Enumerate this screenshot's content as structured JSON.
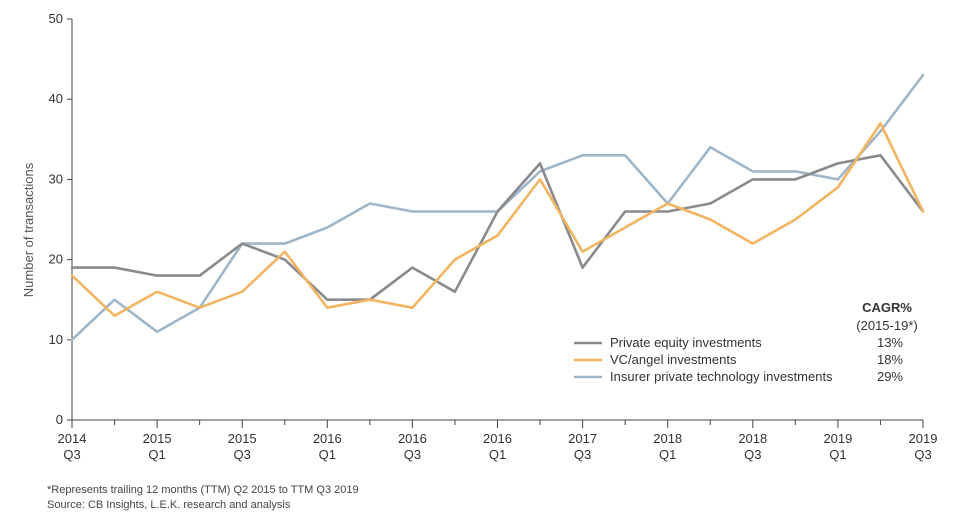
{
  "chart_data": {
    "type": "line",
    "ylabel": "Number of transactions",
    "ylim": [
      0,
      50
    ],
    "yticks": [
      0,
      10,
      20,
      30,
      40,
      50
    ],
    "grid": false,
    "x": [
      "2014 Q3",
      "2014 Q4",
      "2015 Q1",
      "2015 Q2",
      "2015 Q3",
      "2015 Q4",
      "2016 Q1",
      "2016 Q2",
      "2016 Q3",
      "2016 Q4",
      "2016 Q1",
      "2016 Q2",
      "2017 Q3",
      "2017 Q4",
      "2018 Q1",
      "2018 Q2",
      "2018 Q3",
      "2018 Q4",
      "2019 Q1",
      "2019 Q2",
      "2019 Q3"
    ],
    "xtick_labels": [
      {
        "index": 0,
        "year": "2014",
        "quarter": "Q3"
      },
      {
        "index": 2,
        "year": "2015",
        "quarter": "Q1"
      },
      {
        "index": 4,
        "year": "2015",
        "quarter": "Q3"
      },
      {
        "index": 6,
        "year": "2016",
        "quarter": "Q1"
      },
      {
        "index": 8,
        "year": "2016",
        "quarter": "Q3"
      },
      {
        "index": 10,
        "year": "2016",
        "quarter": "Q1"
      },
      {
        "index": 12,
        "year": "2017",
        "quarter": "Q3"
      },
      {
        "index": 14,
        "year": "2018",
        "quarter": "Q1"
      },
      {
        "index": 16,
        "year": "2018",
        "quarter": "Q3"
      },
      {
        "index": 18,
        "year": "2019",
        "quarter": "Q1"
      },
      {
        "index": 20,
        "year": "2019",
        "quarter": "Q3"
      }
    ],
    "series": [
      {
        "name": "Private equity investments",
        "color": "#8a8a8c",
        "cagr": "13%",
        "values": [
          19,
          19,
          18,
          18,
          22,
          20,
          15,
          15,
          19,
          16,
          26,
          32,
          19,
          26,
          26,
          27,
          30,
          30,
          32,
          33,
          26
        ]
      },
      {
        "name": "VC/angel investments",
        "color": "#f2b461",
        "cagr": "18%",
        "values": [
          18,
          13,
          16,
          14,
          16,
          21,
          14,
          15,
          14,
          20,
          23,
          30,
          21,
          24,
          27,
          25,
          22,
          25,
          29,
          37,
          26
        ]
      },
      {
        "name": "Insurer private technology investments",
        "color": "#9fb6c9",
        "cagr": "29%",
        "values": [
          10,
          15,
          11,
          14,
          22,
          22,
          24,
          27,
          26,
          26,
          26,
          31,
          33,
          33,
          27,
          34,
          31,
          31,
          30,
          36,
          43
        ]
      }
    ],
    "legend": {
      "placement": "bottom-right",
      "cagr_title": "CAGR%",
      "cagr_subtitle": "(2015-19*)"
    }
  },
  "footnotes": {
    "note": "*Represents trailing 12 months (TTM) Q2 2015 to TTM Q3 2019",
    "source": "Source: CB Insights, L.E.K. research and analysis"
  }
}
